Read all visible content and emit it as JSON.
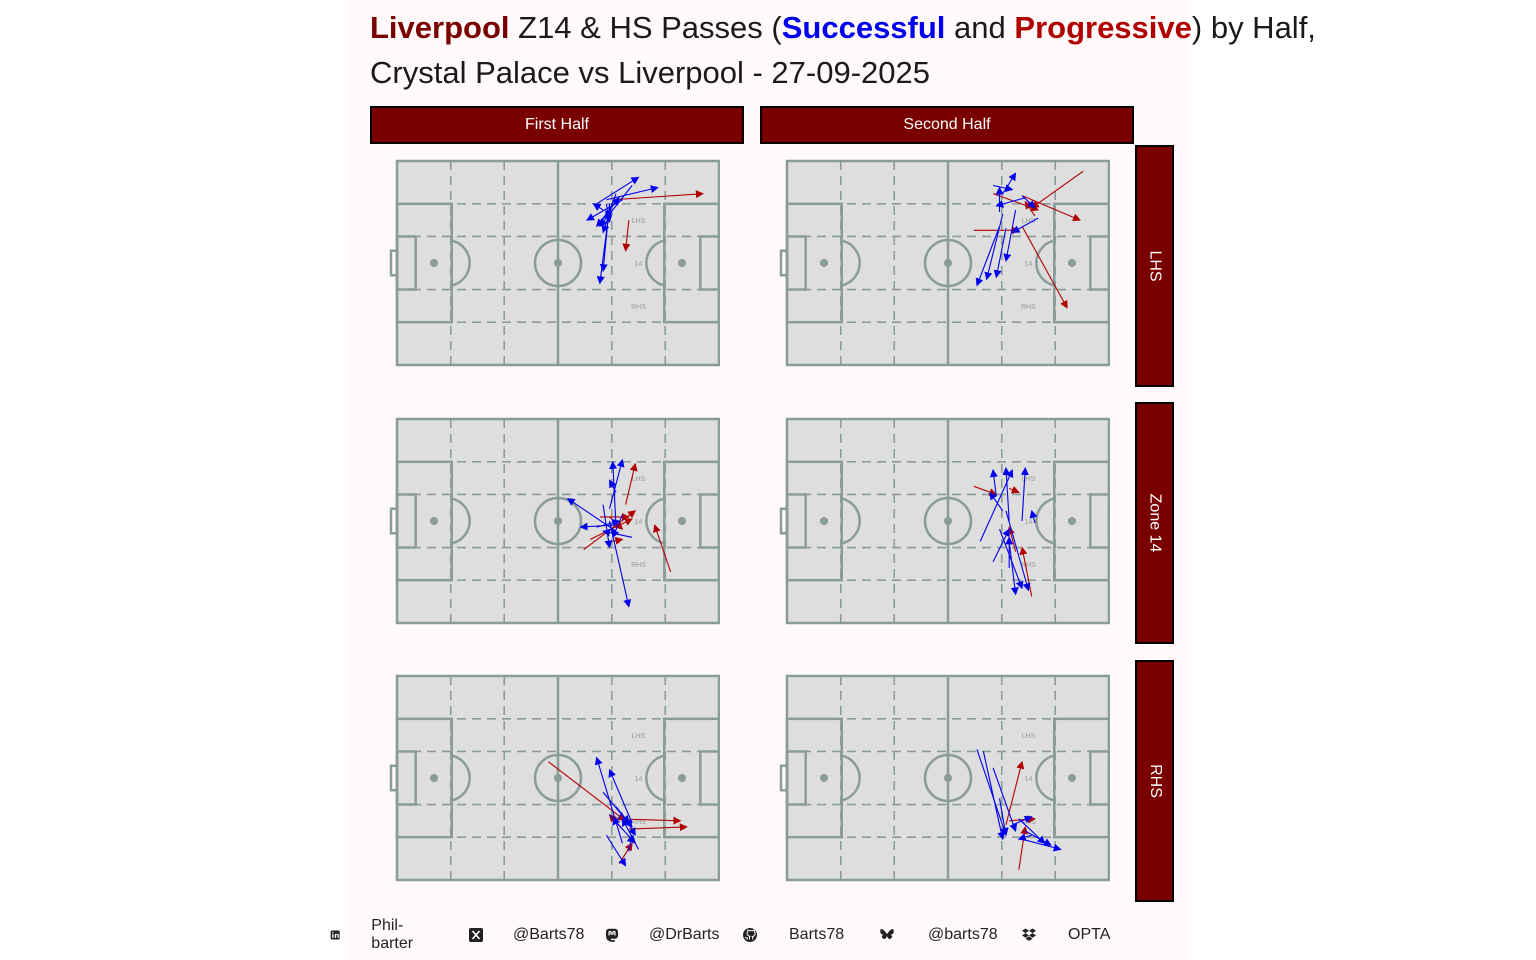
{
  "title": {
    "line1_parts": [
      "Liverpool",
      " Z14 & HS Passes (",
      "Successful",
      " and ",
      "Progressive",
      ") by Half,"
    ],
    "line2": "Crystal Palace vs Liverpool - 27-09-2025"
  },
  "facets": {
    "columns": [
      "First Half",
      "Second Half"
    ],
    "rows": [
      "LHS",
      "Zone 14",
      "RHS"
    ]
  },
  "pitch": {
    "zone_labels": [
      "LHS",
      "14",
      "RHS"
    ],
    "colors": {
      "grass": "#dedede",
      "lines": "#8a9c99"
    }
  },
  "colors": {
    "successful": "#0000ee",
    "progressive": "#b00000",
    "strip": "#7a0000"
  },
  "footer": [
    {
      "icon": "linkedin-icon",
      "text": "Phil-barter"
    },
    {
      "icon": "x-icon",
      "text": "@Barts78"
    },
    {
      "icon": "mastodon-icon",
      "text": "@DrBarts"
    },
    {
      "icon": "github-icon",
      "text": "Barts78"
    },
    {
      "icon": "bluesky-icon",
      "text": "@barts78"
    },
    {
      "icon": "dropbox-icon",
      "text": "OPTA"
    }
  ],
  "chart_data": {
    "type": "scatter",
    "description_units": "pitch coordinates 0-100 (x = length toward attacking goal, y = width, 100 = top)",
    "panels": [
      {
        "half": "First Half",
        "zone": "LHS",
        "passes": [
          {
            "x1": 67,
            "y1": 81,
            "x2": 95,
            "y2": 84,
            "kind": "progressive"
          },
          {
            "x1": 72,
            "y1": 71,
            "x2": 71,
            "y2": 56,
            "kind": "progressive"
          },
          {
            "x1": 65,
            "y1": 81,
            "x2": 81,
            "y2": 87,
            "kind": "successful"
          },
          {
            "x1": 62,
            "y1": 79,
            "x2": 75,
            "y2": 92,
            "kind": "successful"
          },
          {
            "x1": 66,
            "y1": 77,
            "x2": 63,
            "y2": 40,
            "kind": "successful"
          },
          {
            "x1": 70,
            "y1": 81,
            "x2": 59,
            "y2": 71,
            "kind": "successful"
          },
          {
            "x1": 64,
            "y1": 76,
            "x2": 61,
            "y2": 79,
            "kind": "successful"
          },
          {
            "x1": 68,
            "y1": 84,
            "x2": 64,
            "y2": 65,
            "kind": "successful"
          },
          {
            "x1": 73,
            "y1": 88,
            "x2": 63,
            "y2": 68,
            "kind": "successful"
          },
          {
            "x1": 66,
            "y1": 79,
            "x2": 64,
            "y2": 46,
            "kind": "successful"
          },
          {
            "x1": 67,
            "y1": 80,
            "x2": 65,
            "y2": 72,
            "kind": "successful"
          },
          {
            "x1": 66,
            "y1": 75,
            "x2": 62,
            "y2": 68,
            "kind": "successful"
          },
          {
            "x1": 63,
            "y1": 70,
            "x2": 69,
            "y2": 82,
            "kind": "successful"
          },
          {
            "x1": 65,
            "y1": 79,
            "x2": 66,
            "y2": 70,
            "kind": "successful"
          }
        ]
      },
      {
        "half": "Second Half",
        "zone": "LHS",
        "passes": [
          {
            "x1": 73,
            "y1": 83,
            "x2": 91,
            "y2": 71,
            "kind": "progressive"
          },
          {
            "x1": 73,
            "y1": 68,
            "x2": 87,
            "y2": 28,
            "kind": "progressive"
          },
          {
            "x1": 64,
            "y1": 84,
            "x2": 78,
            "y2": 76,
            "kind": "progressive"
          },
          {
            "x1": 58,
            "y1": 66,
            "x2": 72,
            "y2": 66,
            "kind": "progressive"
          },
          {
            "x1": 77,
            "y1": 73,
            "x2": 74,
            "y2": 80,
            "kind": "progressive"
          },
          {
            "x1": 92,
            "y1": 95,
            "x2": 76,
            "y2": 77,
            "kind": "progressive"
          },
          {
            "x1": 67,
            "y1": 84,
            "x2": 71,
            "y2": 94,
            "kind": "successful"
          },
          {
            "x1": 64,
            "y1": 88,
            "x2": 70,
            "y2": 86,
            "kind": "successful"
          },
          {
            "x1": 74,
            "y1": 82,
            "x2": 65,
            "y2": 78,
            "kind": "successful"
          },
          {
            "x1": 66,
            "y1": 68,
            "x2": 59,
            "y2": 39,
            "kind": "successful"
          },
          {
            "x1": 68,
            "y1": 67,
            "x2": 65,
            "y2": 43,
            "kind": "successful"
          },
          {
            "x1": 67,
            "y1": 74,
            "x2": 62,
            "y2": 42,
            "kind": "successful"
          },
          {
            "x1": 71,
            "y1": 76,
            "x2": 68,
            "y2": 51,
            "kind": "successful"
          },
          {
            "x1": 78,
            "y1": 72,
            "x2": 70,
            "y2": 65,
            "kind": "successful"
          },
          {
            "x1": 66,
            "y1": 75,
            "x2": 66,
            "y2": 87,
            "kind": "successful"
          },
          {
            "x1": 73,
            "y1": 83,
            "x2": 77,
            "y2": 77,
            "kind": "successful"
          }
        ]
      },
      {
        "half": "First Half",
        "zone": "Zone 14",
        "passes": [
          {
            "x1": 58,
            "y1": 36,
            "x2": 74,
            "y2": 55,
            "kind": "progressive"
          },
          {
            "x1": 60,
            "y1": 41,
            "x2": 73,
            "y2": 51,
            "kind": "progressive"
          },
          {
            "x1": 66,
            "y1": 52,
            "x2": 70,
            "y2": 46,
            "kind": "progressive"
          },
          {
            "x1": 71,
            "y1": 58,
            "x2": 74,
            "y2": 78,
            "kind": "progressive"
          },
          {
            "x1": 85,
            "y1": 25,
            "x2": 80,
            "y2": 48,
            "kind": "progressive"
          },
          {
            "x1": 67,
            "y1": 40,
            "x2": 70,
            "y2": 41,
            "kind": "progressive"
          },
          {
            "x1": 63,
            "y1": 52,
            "x2": 72,
            "y2": 52,
            "kind": "progressive"
          },
          {
            "x1": 68,
            "y1": 45,
            "x2": 53,
            "y2": 61,
            "kind": "successful"
          },
          {
            "x1": 67,
            "y1": 48,
            "x2": 57,
            "y2": 47,
            "kind": "successful"
          },
          {
            "x1": 68,
            "y1": 48,
            "x2": 67,
            "y2": 79,
            "kind": "successful"
          },
          {
            "x1": 66,
            "y1": 56,
            "x2": 70,
            "y2": 80,
            "kind": "successful"
          },
          {
            "x1": 66,
            "y1": 50,
            "x2": 72,
            "y2": 8,
            "kind": "successful"
          },
          {
            "x1": 64,
            "y1": 58,
            "x2": 66,
            "y2": 37,
            "kind": "successful"
          },
          {
            "x1": 68,
            "y1": 64,
            "x2": 66,
            "y2": 70,
            "kind": "successful"
          },
          {
            "x1": 73,
            "y1": 42,
            "x2": 64,
            "y2": 45,
            "kind": "successful"
          },
          {
            "x1": 70,
            "y1": 53,
            "x2": 67,
            "y2": 42,
            "kind": "successful"
          },
          {
            "x1": 62,
            "y1": 47,
            "x2": 69,
            "y2": 50,
            "kind": "successful"
          }
        ]
      },
      {
        "half": "Second Half",
        "zone": "Zone 14",
        "passes": [
          {
            "x1": 58,
            "y1": 67,
            "x2": 65,
            "y2": 63,
            "kind": "progressive"
          },
          {
            "x1": 71,
            "y1": 35,
            "x2": 69,
            "y2": 47,
            "kind": "progressive"
          },
          {
            "x1": 76,
            "y1": 13,
            "x2": 73,
            "y2": 37,
            "kind": "progressive"
          },
          {
            "x1": 69,
            "y1": 66,
            "x2": 72,
            "y2": 64,
            "kind": "progressive"
          },
          {
            "x1": 65,
            "y1": 62,
            "x2": 64,
            "y2": 75,
            "kind": "successful"
          },
          {
            "x1": 60,
            "y1": 40,
            "x2": 70,
            "y2": 75,
            "kind": "successful"
          },
          {
            "x1": 69,
            "y1": 50,
            "x2": 68,
            "y2": 76,
            "kind": "successful"
          },
          {
            "x1": 67,
            "y1": 55,
            "x2": 63,
            "y2": 64,
            "kind": "successful"
          },
          {
            "x1": 66,
            "y1": 46,
            "x2": 73,
            "y2": 17,
            "kind": "successful"
          },
          {
            "x1": 69,
            "y1": 40,
            "x2": 71,
            "y2": 14,
            "kind": "successful"
          },
          {
            "x1": 73,
            "y1": 50,
            "x2": 74,
            "y2": 76,
            "kind": "successful"
          },
          {
            "x1": 64,
            "y1": 30,
            "x2": 69,
            "y2": 46,
            "kind": "successful"
          },
          {
            "x1": 69,
            "y1": 27,
            "x2": 69,
            "y2": 42,
            "kind": "successful"
          },
          {
            "x1": 77,
            "y1": 49,
            "x2": 76,
            "y2": 55,
            "kind": "successful"
          },
          {
            "x1": 68,
            "y1": 55,
            "x2": 75,
            "y2": 16,
            "kind": "successful"
          }
        ]
      },
      {
        "half": "First Half",
        "zone": "RHS",
        "passes": [
          {
            "x1": 47,
            "y1": 58,
            "x2": 71,
            "y2": 29,
            "kind": "progressive"
          },
          {
            "x1": 67,
            "y1": 30,
            "x2": 88,
            "y2": 29,
            "kind": "progressive"
          },
          {
            "x1": 70,
            "y1": 25,
            "x2": 66,
            "y2": 32,
            "kind": "progressive"
          },
          {
            "x1": 69,
            "y1": 8,
            "x2": 73,
            "y2": 18,
            "kind": "progressive"
          },
          {
            "x1": 72,
            "y1": 25,
            "x2": 90,
            "y2": 26,
            "kind": "progressive"
          },
          {
            "x1": 64,
            "y1": 43,
            "x2": 73,
            "y2": 26,
            "kind": "successful"
          },
          {
            "x1": 70,
            "y1": 18,
            "x2": 62,
            "y2": 60,
            "kind": "successful"
          },
          {
            "x1": 73,
            "y1": 28,
            "x2": 66,
            "y2": 54,
            "kind": "successful"
          },
          {
            "x1": 71,
            "y1": 30,
            "x2": 74,
            "y2": 22,
            "kind": "successful"
          },
          {
            "x1": 65,
            "y1": 22,
            "x2": 71,
            "y2": 7,
            "kind": "successful"
          },
          {
            "x1": 70,
            "y1": 33,
            "x2": 67,
            "y2": 27,
            "kind": "successful"
          },
          {
            "x1": 75,
            "y1": 15,
            "x2": 70,
            "y2": 30,
            "kind": "successful"
          },
          {
            "x1": 72,
            "y1": 14,
            "x2": 73,
            "y2": 22,
            "kind": "successful"
          },
          {
            "x1": 68,
            "y1": 36,
            "x2": 72,
            "y2": 28,
            "kind": "successful"
          },
          {
            "x1": 66,
            "y1": 32,
            "x2": 74,
            "y2": 18,
            "kind": "successful"
          }
        ]
      },
      {
        "half": "Second Half",
        "zone": "RHS",
        "passes": [
          {
            "x1": 68,
            "y1": 27,
            "x2": 73,
            "y2": 58,
            "kind": "progressive"
          },
          {
            "x1": 72,
            "y1": 5,
            "x2": 74,
            "y2": 26,
            "kind": "progressive"
          },
          {
            "x1": 69,
            "y1": 29,
            "x2": 77,
            "y2": 30,
            "kind": "progressive"
          },
          {
            "x1": 59,
            "y1": 64,
            "x2": 68,
            "y2": 22,
            "kind": "successful"
          },
          {
            "x1": 61,
            "y1": 63,
            "x2": 67,
            "y2": 20,
            "kind": "successful"
          },
          {
            "x1": 64,
            "y1": 55,
            "x2": 71,
            "y2": 24,
            "kind": "successful"
          },
          {
            "x1": 72,
            "y1": 30,
            "x2": 80,
            "y2": 18,
            "kind": "successful"
          },
          {
            "x1": 73,
            "y1": 20,
            "x2": 85,
            "y2": 15,
            "kind": "successful"
          },
          {
            "x1": 74,
            "y1": 24,
            "x2": 82,
            "y2": 17,
            "kind": "successful"
          },
          {
            "x1": 70,
            "y1": 27,
            "x2": 76,
            "y2": 31,
            "kind": "successful"
          },
          {
            "x1": 66,
            "y1": 40,
            "x2": 68,
            "y2": 22,
            "kind": "successful"
          },
          {
            "x1": 76,
            "y1": 22,
            "x2": 72,
            "y2": 20,
            "kind": "successful"
          }
        ]
      }
    ]
  }
}
